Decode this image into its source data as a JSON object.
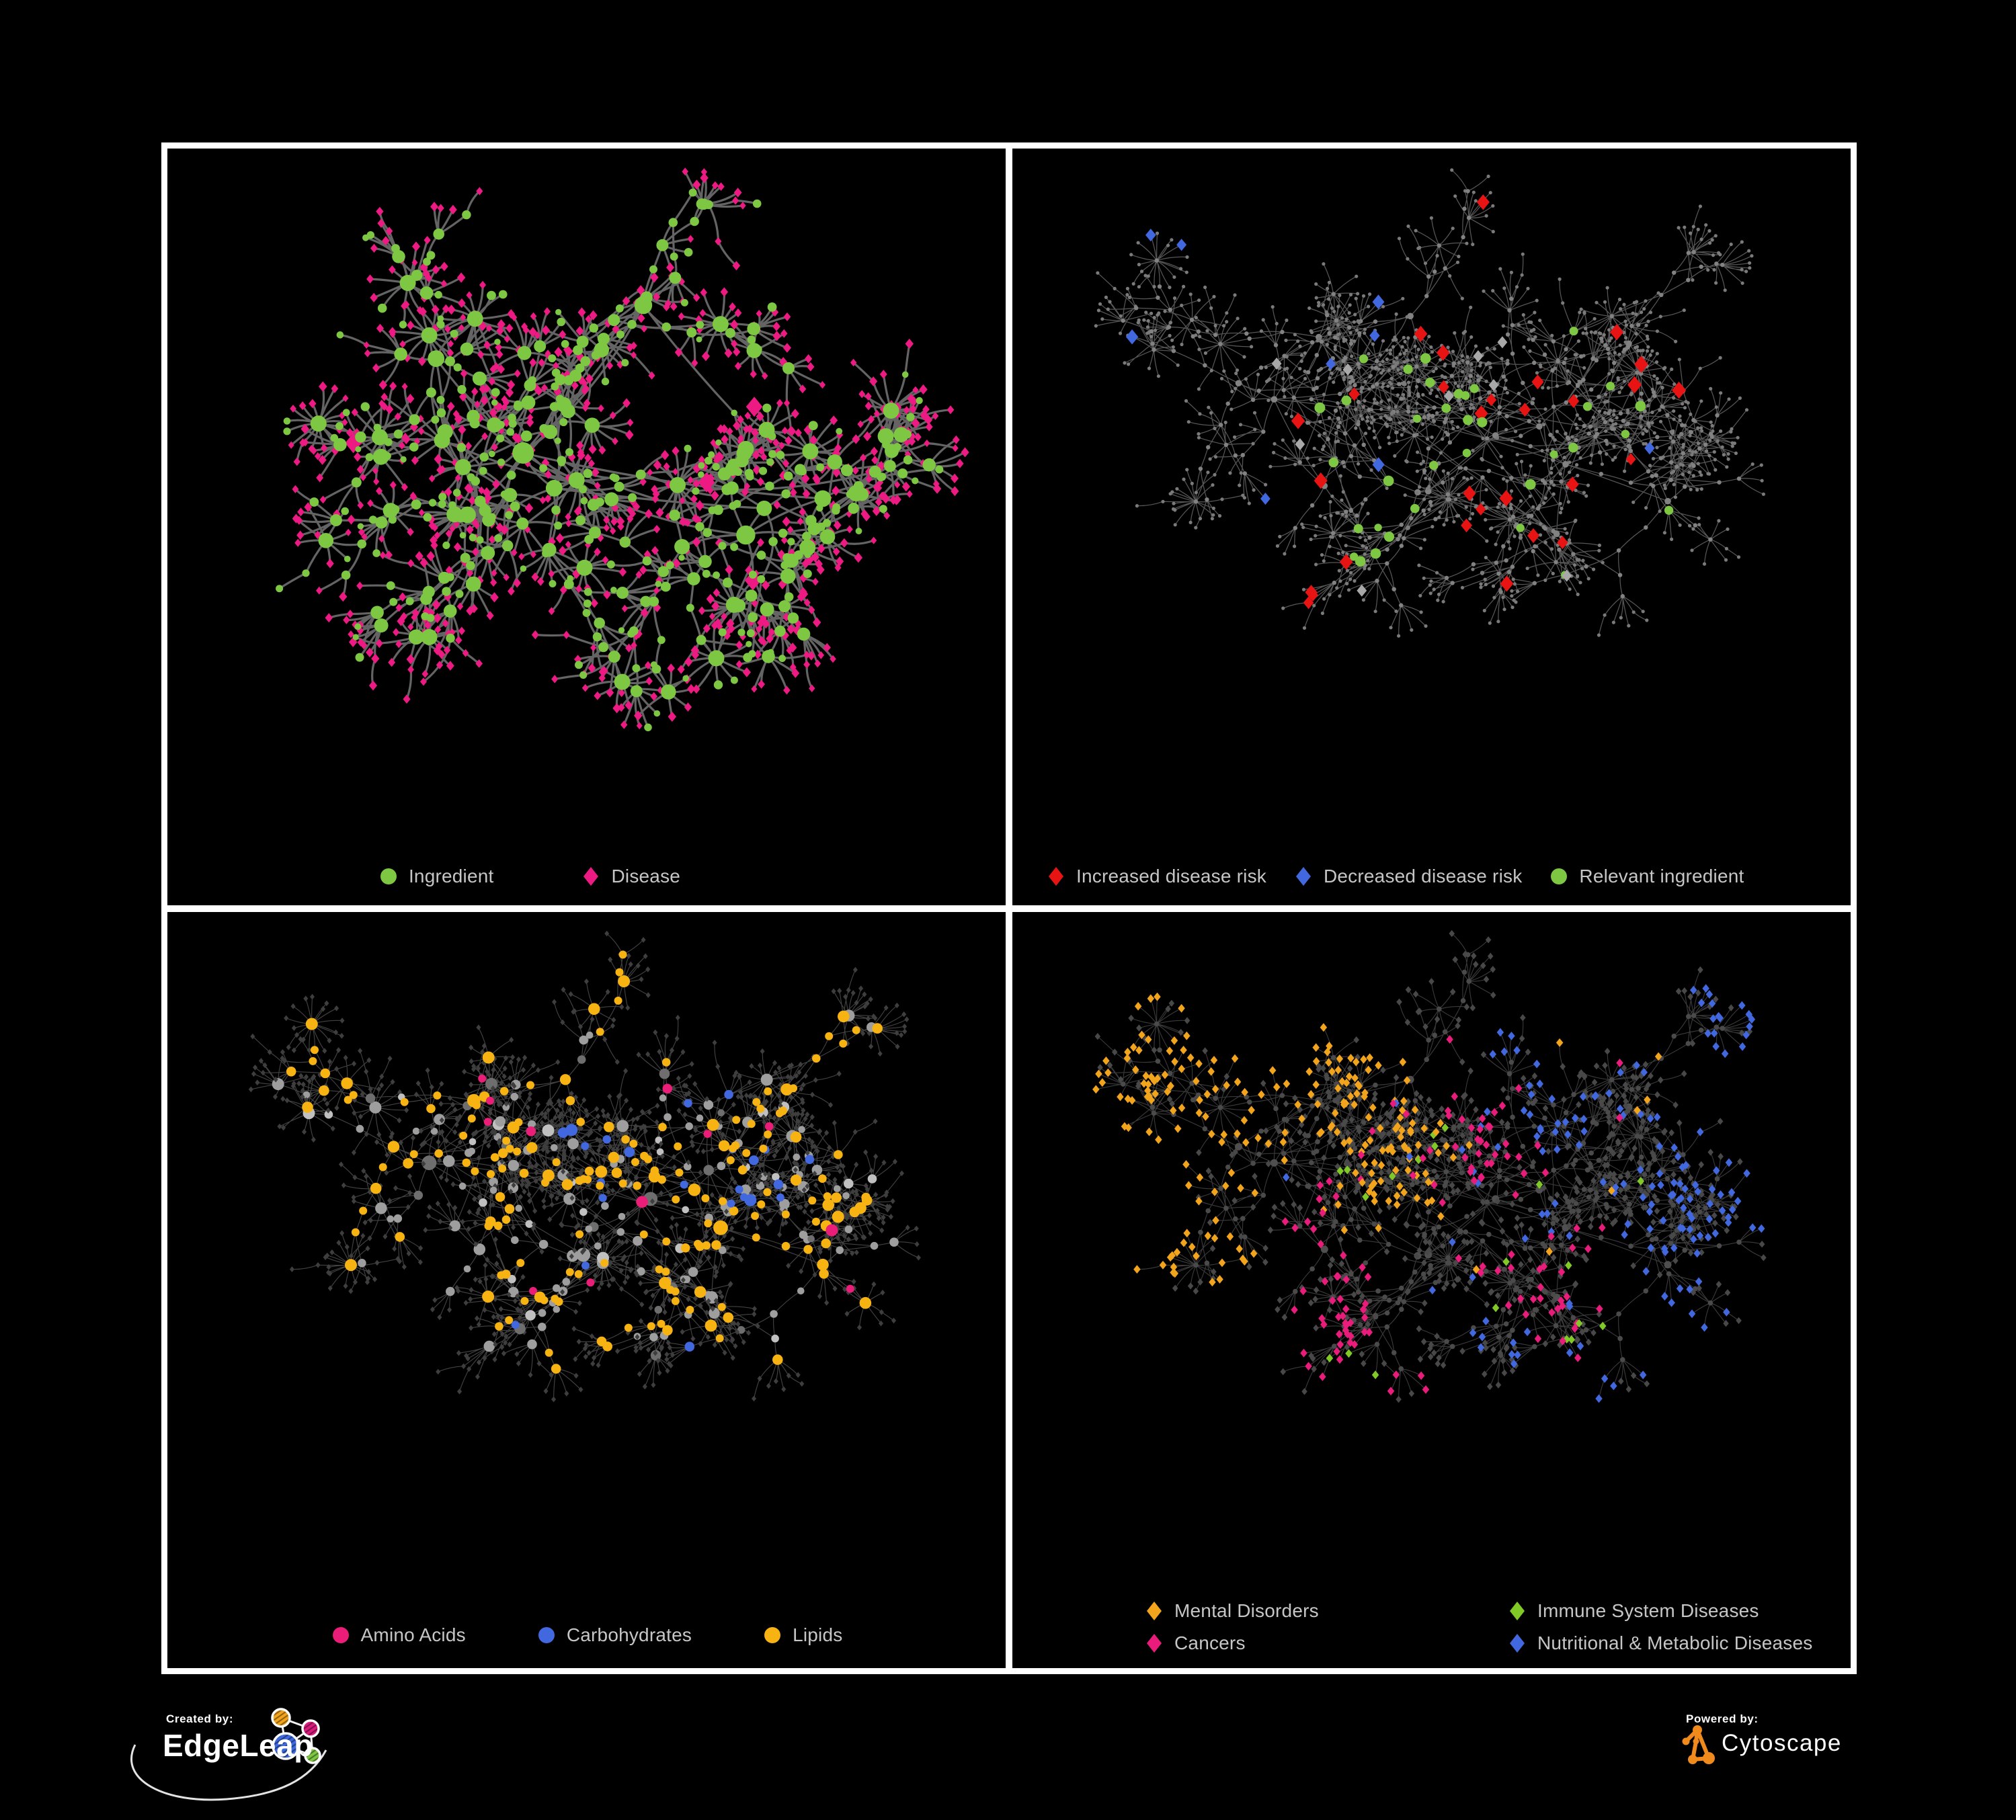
{
  "poster": {
    "background": "#000000",
    "frame_color": "#FFFFFF"
  },
  "panels": [
    {
      "id": "ingredient-disease",
      "legend": [
        {
          "label": "Ingredient",
          "marker": "circle",
          "color": "#7DC742"
        },
        {
          "label": "Disease",
          "marker": "diamond",
          "color": "#EC1A82"
        }
      ],
      "palette": {
        "ingredient": "#7DC742",
        "disease": "#EC1A82",
        "edge": "#6F6F6F"
      }
    },
    {
      "id": "disease-risk",
      "legend": [
        {
          "label": "Increased disease risk",
          "marker": "diamond",
          "color": "#E81313"
        },
        {
          "label": "Decreased disease risk",
          "marker": "diamond",
          "color": "#4168DE"
        },
        {
          "label": "Relevant ingredient",
          "marker": "circle",
          "color": "#7DC742"
        }
      ],
      "palette": {
        "increased": "#E81313",
        "decreased": "#4168DE",
        "unchanged": "#A8A8A8",
        "ingredient": "#7DC742",
        "base_node": "#7A7A7A",
        "edge": "#8A8A8A"
      }
    },
    {
      "id": "ingredient-classes",
      "legend": [
        {
          "label": "Amino Acids",
          "marker": "circle",
          "color": "#EA1D78"
        },
        {
          "label": "Carbohydrates",
          "marker": "circle",
          "color": "#4168DE"
        },
        {
          "label": "Lipids",
          "marker": "circle",
          "color": "#F7B312"
        }
      ],
      "palette": {
        "amino": "#EA1D78",
        "carbs": "#4168DE",
        "lipids": "#F7B312",
        "other_ingredient": "#9E9E9E",
        "disease": "#3E3E3E",
        "edge": "#A6A6A6"
      }
    },
    {
      "id": "disease-classes",
      "legend": [
        {
          "label": "Mental Disorders",
          "marker": "diamond",
          "color": "#F2A41C"
        },
        {
          "label": "Immune System Diseases",
          "marker": "diamond",
          "color": "#80C926"
        },
        {
          "label": "Cancers",
          "marker": "diamond",
          "color": "#E91C7B"
        },
        {
          "label": "Nutritional & Metabolic Diseases",
          "marker": "diamond",
          "color": "#4168DE"
        }
      ],
      "palette": {
        "mental": "#F2A41C",
        "immune": "#80C926",
        "cancers": "#E91C7B",
        "nutritional": "#4168DE",
        "other_disease": "#484848",
        "ingredient": "#4A4A4A",
        "edge": "#9A9A9A"
      }
    }
  ],
  "footer": {
    "created_by": {
      "label": "Created by:",
      "brand": "EdgeLeap"
    },
    "powered_by": {
      "label": "Powered by:",
      "brand": "Cytoscape",
      "accent": "#F08A1D"
    }
  }
}
